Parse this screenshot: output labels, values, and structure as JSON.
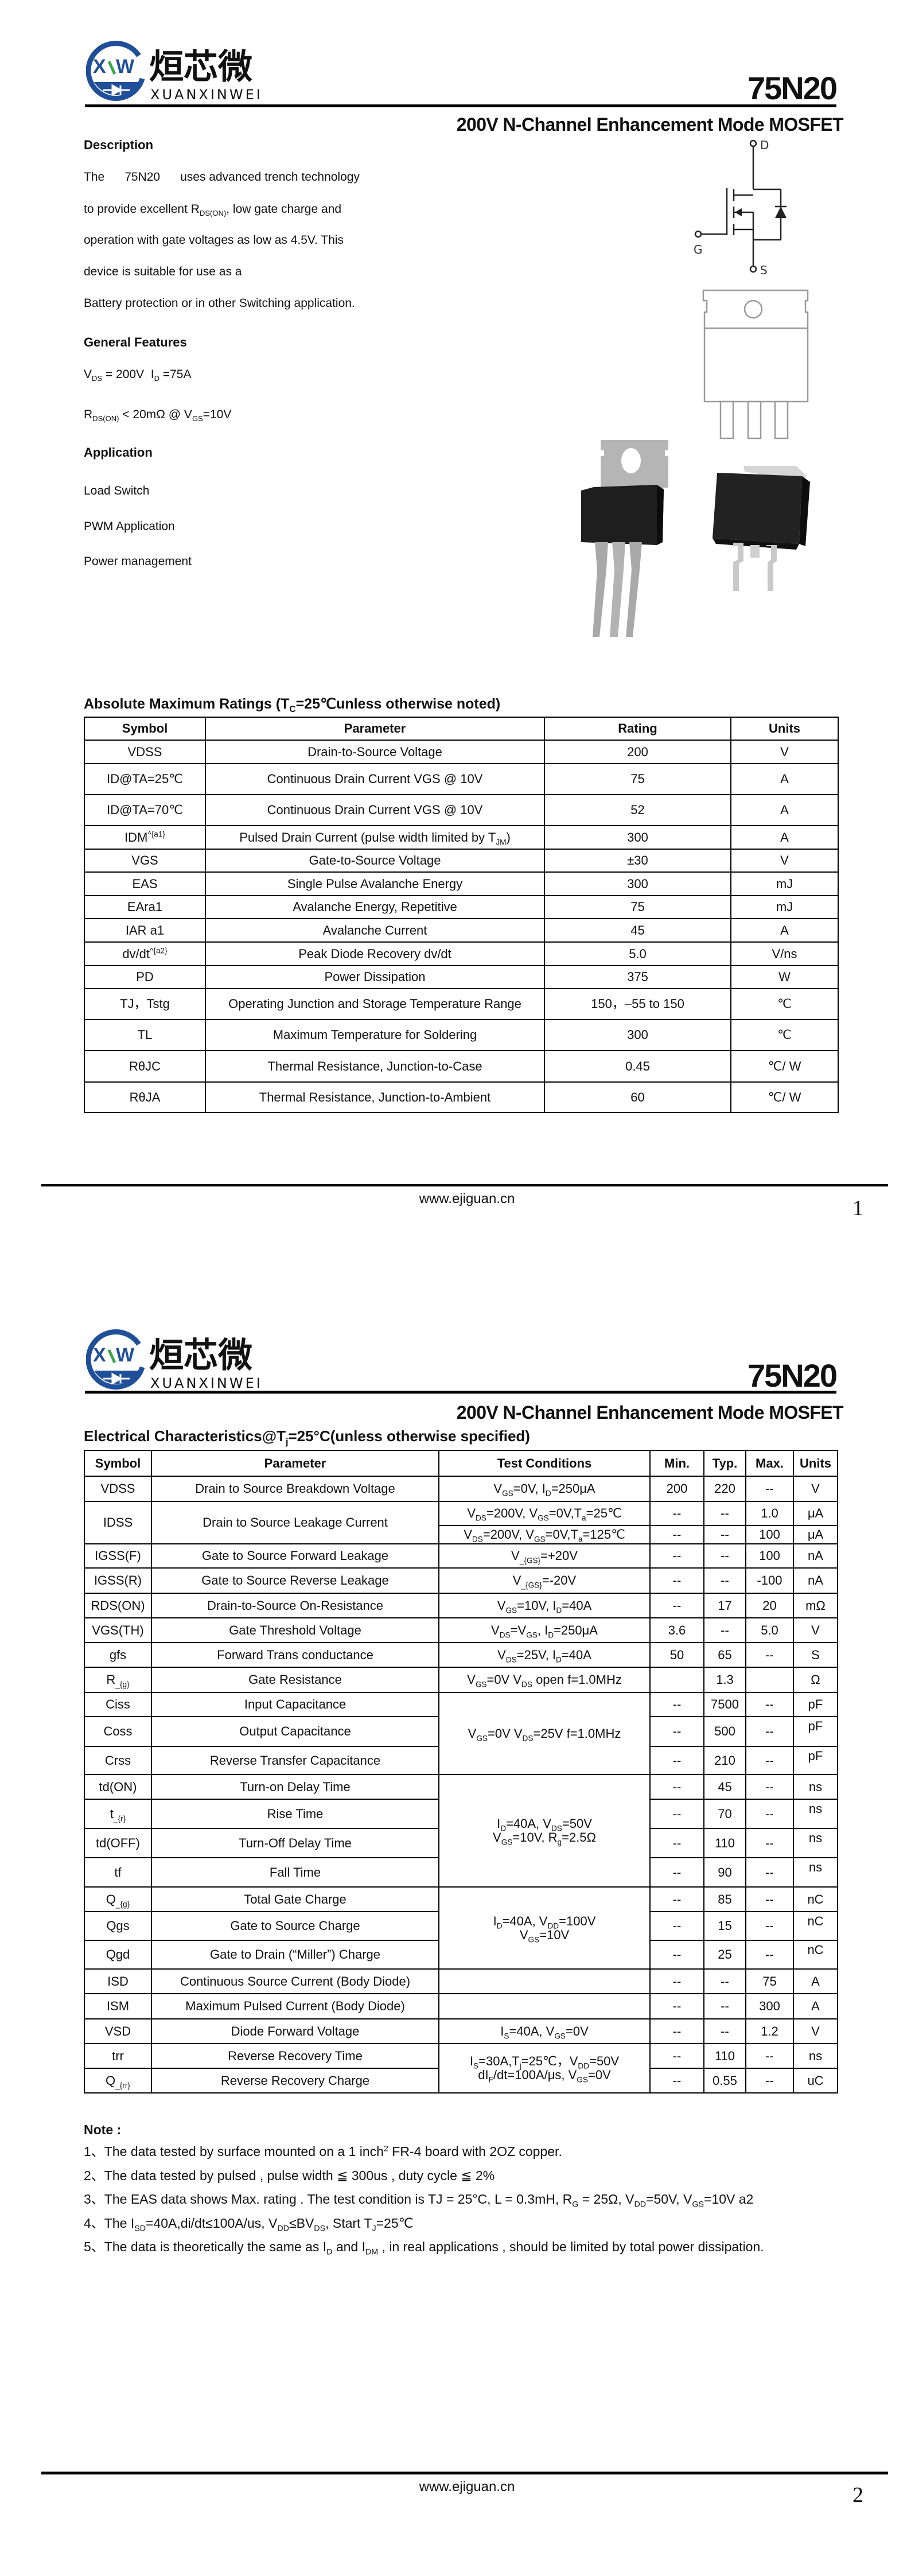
{
  "brand": {
    "logo_mark": "XW",
    "logo_cn": "烜芯微",
    "logo_en": "XUANXINWEI",
    "color_blue": "#1f4f99",
    "color_green": "#3aa64a"
  },
  "page1": {
    "part_number": "75N20",
    "subtitle": "200V N-Channel Enhancement Mode MOSFET",
    "description_heading": "Description",
    "description_lines": [
      "The      75N20      uses advanced trench technology",
      "to provide excellent R_{DS(ON)}, low gate charge and",
      "operation with gate voltages as low as 4.5V. This",
      "device is suitable for use as a",
      "Battery protection or in other Switching application."
    ],
    "features_heading": "General Features",
    "features": [
      "V_{DS} = 200V  I_{D} =75A",
      "R_{DS(ON)} < 20mΩ @ V_{GS}=10V"
    ],
    "application_heading": "Application",
    "applications": [
      "Load Switch",
      "PWM Application",
      "Power management"
    ],
    "symbol_labels": {
      "drain": "D",
      "gate": "G",
      "source": "S"
    },
    "table": {
      "title": "Absolute Maximum Ratings (T_{C}=25℃unless otherwise noted)",
      "headers": [
        "Symbol",
        "Parameter",
        "Rating",
        "Units"
      ],
      "rows": [
        [
          "VDSS",
          "Drain-to-Source Voltage",
          "200",
          "V"
        ],
        [
          "ID@TA=25℃",
          "Continuous Drain Current VGS @ 10V",
          "75",
          "A"
        ],
        [
          "ID@TA=70℃",
          "Continuous Drain Current VGS @ 10V",
          "52",
          "A"
        ],
        [
          "IDM^{a1}",
          "Pulsed Drain Current (pulse width limited by T_{JM})",
          "300",
          "A"
        ],
        [
          "VGS",
          "Gate-to-Source Voltage",
          "±30",
          "V"
        ],
        [
          "EAS",
          "Single Pulse Avalanche Energy",
          "300",
          "mJ"
        ],
        [
          "EAra1",
          "Avalanche Energy, Repetitive",
          "75",
          "mJ"
        ],
        [
          "IAR a1",
          "Avalanche Current",
          "45",
          "A"
        ],
        [
          "dv/dt^{a2}",
          "Peak Diode Recovery dv/dt",
          "5.0",
          "V/ns"
        ],
        [
          "PD",
          "Power Dissipation",
          "375",
          "W"
        ],
        [
          "TJ，Tstg",
          "Operating Junction and Storage Temperature Range",
          "150，–55 to 150",
          "℃"
        ],
        [
          "TL",
          "Maximum Temperature for Soldering",
          "300",
          "℃"
        ],
        [
          "RθJC",
          "Thermal Resistance, Junction-to-Case",
          "0.45",
          "℃/ W"
        ],
        [
          "RθJA",
          "Thermal Resistance, Junction-to-Ambient",
          "60",
          "℃/ W"
        ]
      ]
    },
    "footer_url": "www.ejiguan.cn",
    "page_number": "1"
  },
  "page2": {
    "part_number": "75N20",
    "subtitle": "200V N-Channel Enhancement Mode MOSFET",
    "table": {
      "title": "Electrical Characteristics@T_{j}=25°C(unless otherwise specified)",
      "headers": [
        "Symbol",
        "Parameter",
        "Test Conditions",
        "Min.",
        "Typ.",
        "Max.",
        "Units"
      ],
      "rows": [
        {
          "symbol": "VDSS",
          "parameter": "Drain to Source Breakdown Voltage",
          "conditions": "V_{GS}=0V, I_{D}=250μA",
          "min": "200",
          "typ": "220",
          "max": "--",
          "units": "V"
        },
        {
          "symbol": "IDSS",
          "parameter": "Drain to Source Leakage Current",
          "sub": [
            {
              "conditions": "V_{DS}=200V, V_{GS}=0V,T_{a}=25℃",
              "min": "--",
              "typ": "--",
              "max": "1.0",
              "units": "μA"
            },
            {
              "conditions": "V_{DS}=200V, V_{GS}=0V,T_{a}=125℃",
              "min": "--",
              "typ": "--",
              "max": "100",
              "units": "μA"
            }
          ]
        },
        {
          "symbol": "IGSS(F)",
          "parameter": "Gate to Source Forward Leakage",
          "conditions": "V_{GS}=+20V",
          "min": "--",
          "typ": "--",
          "max": "100",
          "units": "nA"
        },
        {
          "symbol": "IGSS(R)",
          "parameter": "Gate to Source Reverse Leakage",
          "conditions": "V_{GS}=-20V",
          "min": "--",
          "typ": "--",
          "max": "-100",
          "units": "nA"
        },
        {
          "symbol": "RDS(ON)",
          "parameter": "Drain-to-Source On-Resistance",
          "conditions": "V_{GS}=10V, I_{D}=40A",
          "min": "--",
          "typ": "17",
          "max": "20",
          "units": "mΩ"
        },
        {
          "symbol": "VGS(TH)",
          "parameter": "Gate Threshold Voltage",
          "conditions": "V_{DS}=V_{GS}, I_{D}=250μA",
          "min": "3.6",
          "typ": "--",
          "max": "5.0",
          "units": "V"
        },
        {
          "symbol": "gfs",
          "parameter": "Forward Trans conductance",
          "conditions": "V_{DS}=25V, I_{D}=40A",
          "min": "50",
          "typ": "65",
          "max": "--",
          "units": "S"
        },
        {
          "symbol": "R_{g}",
          "parameter": "Gate Resistance",
          "conditions": "V_{GS}=0V V_{DS} open f=1.0MHz",
          "min": "",
          "typ": "1.3",
          "max": "",
          "units": "Ω"
        },
        {
          "symbol": "Ciss",
          "parameter": "Input Capacitance",
          "conditions": "V_{GS}=0V V_{DS}=25V f=1.0MHz",
          "min": "--",
          "typ": "7500",
          "max": "--",
          "units": "pF"
        },
        {
          "symbol": "Coss",
          "parameter": "Output Capacitance",
          "min": "--",
          "typ": "500",
          "max": "--",
          "units": "pF"
        },
        {
          "symbol": "Crss",
          "parameter": "Reverse Transfer Capacitance",
          "min": "--",
          "typ": "210",
          "max": "--",
          "units": "pF"
        },
        {
          "symbol": "td(ON)",
          "parameter": "Turn-on Delay Time",
          "conditions": "I_{D}=40A, V_{DS}=50V\nV_{GS}=10V, R_{g}=2.5Ω",
          "min": "--",
          "typ": "45",
          "max": "--",
          "units": "ns"
        },
        {
          "symbol": "t_{r}",
          "parameter": "Rise Time",
          "min": "--",
          "typ": "70",
          "max": "--",
          "units": "ns"
        },
        {
          "symbol": "td(OFF)",
          "parameter": "Turn-Off Delay Time",
          "min": "--",
          "typ": "110",
          "max": "--",
          "units": "ns"
        },
        {
          "symbol": "tf",
          "parameter": "Fall Time",
          "min": "--",
          "typ": "90",
          "max": "--",
          "units": "ns"
        },
        {
          "symbol": "Q_{g}",
          "parameter": "Total Gate Charge",
          "conditions": "I_{D}=40A, V_{DD}=100V\nV_{GS}=10V",
          "min": "--",
          "typ": "85",
          "max": "--",
          "units": "nC"
        },
        {
          "symbol": "Qgs",
          "parameter": "Gate to Source Charge",
          "min": "--",
          "typ": "15",
          "max": "--",
          "units": "nC"
        },
        {
          "symbol": "Qgd",
          "parameter": "Gate to Drain (“Miller”) Charge",
          "min": "--",
          "typ": "25",
          "max": "--",
          "units": "nC"
        },
        {
          "symbol": "ISD",
          "parameter": "Continuous Source Current (Body Diode)",
          "conditions": "",
          "min": "--",
          "typ": "--",
          "max": "75",
          "units": "A"
        },
        {
          "symbol": "ISM",
          "parameter": "Maximum Pulsed Current (Body Diode)",
          "conditions": "",
          "min": "--",
          "typ": "--",
          "max": "300",
          "units": "A"
        },
        {
          "symbol": "VSD",
          "parameter": "Diode Forward Voltage",
          "conditions": "I_{S}=40A, V_{GS}=0V",
          "min": "--",
          "typ": "--",
          "max": "1.2",
          "units": "V"
        },
        {
          "symbol": "trr",
          "parameter": "Reverse Recovery Time",
          "conditions": "I_{S}=30A,T_{j}=25℃，V_{DD}=50V\ndI_{F}/dt=100A/μs, V_{GS}=0V",
          "min": "--",
          "typ": "110",
          "max": "--",
          "units": "ns"
        },
        {
          "symbol": "Q_{rr}",
          "parameter": "Reverse Recovery Charge",
          "min": "--",
          "typ": "0.55",
          "max": "--",
          "units": "uC"
        }
      ]
    },
    "note_heading": "Note :",
    "notes": [
      "1、The data tested by surface mounted on a 1 inch^{2} FR-4 board with 2OZ copper.",
      "2、The data tested by pulsed , pulse width ≦ 300us , duty cycle ≦ 2%",
      "3、The EAS data shows Max. rating . The test condition is TJ = 25°C, L = 0.3mH, R_{G} = 25Ω, V_{DD}=50V,  V_{GS}=10V a2",
      "4、The I_{SD}=40A,di/dt≤100A/us, V_{DD}≤BV_{DS}, Start T_{J}=25℃",
      "5、The data is theoretically the same as I_{D} and I_{DM} , in real applications , should be limited by total power dissipation."
    ],
    "footer_url": "www.ejiguan.cn",
    "page_number": "2"
  }
}
